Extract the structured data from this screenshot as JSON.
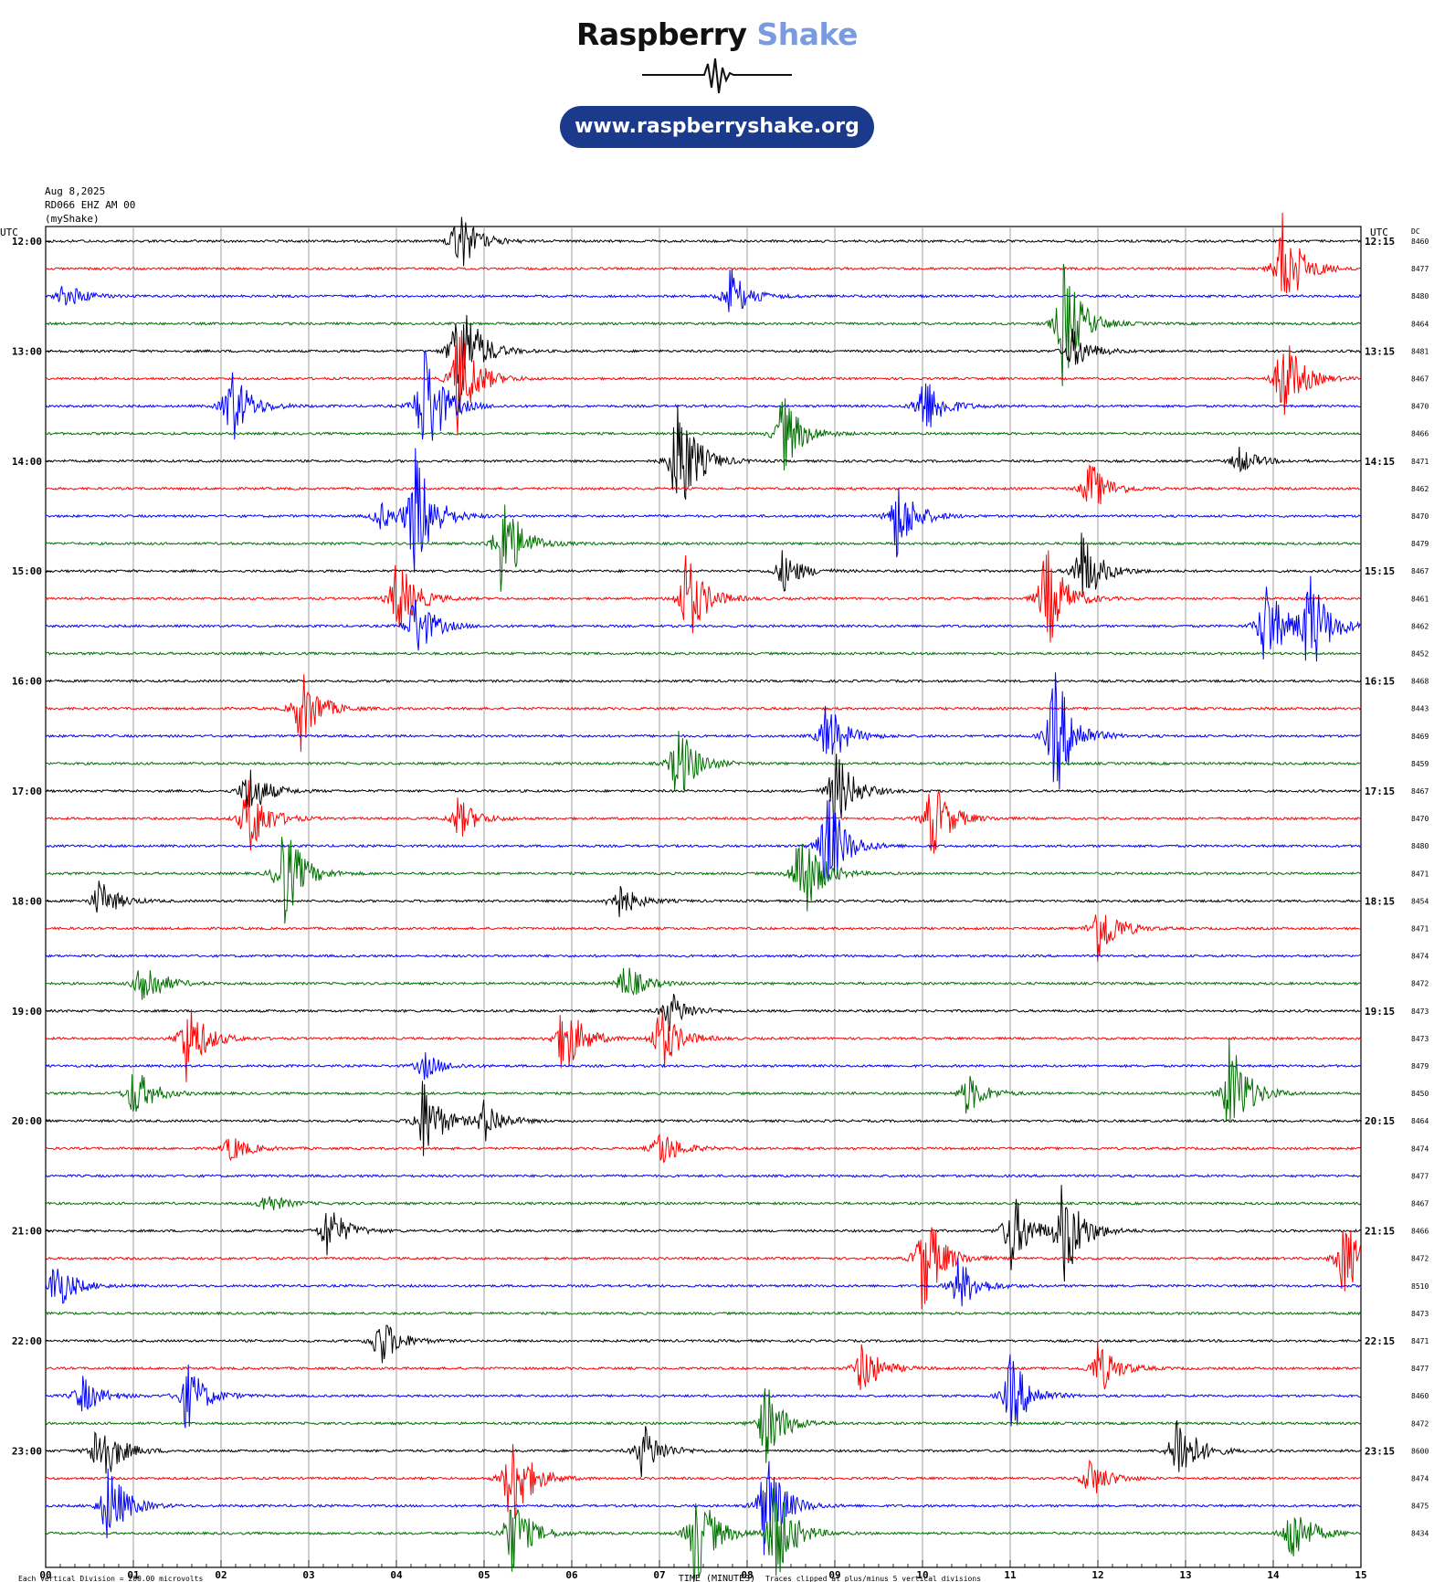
{
  "logo": {
    "word1": "Raspberry",
    "word2": "Shake",
    "url": "www.raspberryshake.org",
    "accent": "#7b9be0",
    "pill_color": "#1c3a8c"
  },
  "header": {
    "date": "Aug 8,2025",
    "station": "RD066 EHZ AM 00",
    "source": "(myShake)"
  },
  "axis": {
    "left_tz": "UTC",
    "right_tz": "UTC",
    "dc_label": "DC",
    "xlabel": "TIME (MINUTES)",
    "footer_left": "Each Vertical Division = 200.00 microvolts",
    "footer_right": "Traces clipped at plus/minus 5 vertical divisions"
  },
  "chart_data": {
    "type": "line",
    "title": "",
    "xlabel": "TIME (MINUTES)",
    "xlim": [
      0,
      15
    ],
    "x_ticks": [
      "00",
      "01",
      "02",
      "03",
      "04",
      "05",
      "06",
      "07",
      "08",
      "09",
      "10",
      "11",
      "12",
      "13",
      "14",
      "15"
    ],
    "row_minutes": 15,
    "rows": 48,
    "trace_colors": [
      "#000000",
      "#ff0000",
      "#0000ff",
      "#007000"
    ],
    "left_hour_labels": [
      "12:00",
      "13:00",
      "14:00",
      "15:00",
      "16:00",
      "17:00",
      "18:00",
      "19:00",
      "20:00",
      "21:00",
      "22:00",
      "23:00"
    ],
    "right_hour_labels": [
      "12:15",
      "13:15",
      "14:15",
      "15:15",
      "16:15",
      "17:15",
      "18:15",
      "19:15",
      "20:15",
      "21:15",
      "22:15",
      "23:15"
    ],
    "dc_values": [
      "8460",
      "8477",
      "8480",
      "8464",
      "8481",
      "8467",
      "8470",
      "8466",
      "8471",
      "8462",
      "8470",
      "8479",
      "8467",
      "8461",
      "8462",
      "8452",
      "8468",
      "8443",
      "8469",
      "8459",
      "8467",
      "8470",
      "8480",
      "8471",
      "8454",
      "8471",
      "8474",
      "8472",
      "8473",
      "8473",
      "8479",
      "8450",
      "8464",
      "8474",
      "8477",
      "8467",
      "8466",
      "8472",
      "8510",
      "8473",
      "8471",
      "8477",
      "8460",
      "8472",
      "8600",
      "8474",
      "8475",
      "8434"
    ],
    "events": [
      {
        "row": 0,
        "minute": 4.7,
        "amplitude": 2.4
      },
      {
        "row": 1,
        "minute": 14.1,
        "amplitude": 4
      },
      {
        "row": 2,
        "minute": 0.2,
        "amplitude": 1
      },
      {
        "row": 2,
        "minute": 7.8,
        "amplitude": 2
      },
      {
        "row": 3,
        "minute": 11.6,
        "amplitude": 4.5
      },
      {
        "row": 4,
        "minute": 4.7,
        "amplitude": 5
      },
      {
        "row": 4,
        "minute": 11.7,
        "amplitude": 1.5
      },
      {
        "row": 5,
        "minute": 4.7,
        "amplitude": 4
      },
      {
        "row": 5,
        "minute": 14.1,
        "amplitude": 3.5
      },
      {
        "row": 6,
        "minute": 2.1,
        "amplitude": 3
      },
      {
        "row": 6,
        "minute": 10.0,
        "amplitude": 2.5
      },
      {
        "row": 6,
        "minute": 4.3,
        "amplitude": 5
      },
      {
        "row": 7,
        "minute": 8.4,
        "amplitude": 3
      },
      {
        "row": 8,
        "minute": 7.2,
        "amplitude": 5
      },
      {
        "row": 8,
        "minute": 13.6,
        "amplitude": 1
      },
      {
        "row": 9,
        "minute": 11.9,
        "amplitude": 2
      },
      {
        "row": 10,
        "minute": 4.2,
        "amplitude": 5
      },
      {
        "row": 10,
        "minute": 9.7,
        "amplitude": 3
      },
      {
        "row": 10,
        "minute": 3.8,
        "amplitude": 1
      },
      {
        "row": 11,
        "minute": 5.2,
        "amplitude": 4
      },
      {
        "row": 12,
        "minute": 11.8,
        "amplitude": 3
      },
      {
        "row": 12,
        "minute": 8.4,
        "amplitude": 1.5
      },
      {
        "row": 13,
        "minute": 4.0,
        "amplitude": 3
      },
      {
        "row": 13,
        "minute": 7.3,
        "amplitude": 3.5
      },
      {
        "row": 13,
        "minute": 11.4,
        "amplitude": 4
      },
      {
        "row": 14,
        "minute": 4.2,
        "amplitude": 2.5
      },
      {
        "row": 14,
        "minute": 13.9,
        "amplitude": 3.5
      },
      {
        "row": 14,
        "minute": 14.4,
        "amplitude": 4
      },
      {
        "row": 17,
        "minute": 2.9,
        "amplitude": 3
      },
      {
        "row": 18,
        "minute": 11.5,
        "amplitude": 5
      },
      {
        "row": 18,
        "minute": 8.9,
        "amplitude": 2.5
      },
      {
        "row": 19,
        "minute": 7.2,
        "amplitude": 3
      },
      {
        "row": 20,
        "minute": 2.3,
        "amplitude": 2
      },
      {
        "row": 20,
        "minute": 9.0,
        "amplitude": 3
      },
      {
        "row": 21,
        "minute": 2.3,
        "amplitude": 3
      },
      {
        "row": 21,
        "minute": 10.1,
        "amplitude": 3
      },
      {
        "row": 21,
        "minute": 4.7,
        "amplitude": 1.5
      },
      {
        "row": 22,
        "minute": 8.9,
        "amplitude": 4
      },
      {
        "row": 23,
        "minute": 2.7,
        "amplitude": 4
      },
      {
        "row": 23,
        "minute": 8.6,
        "amplitude": 4
      },
      {
        "row": 24,
        "minute": 0.6,
        "amplitude": 1.5
      },
      {
        "row": 24,
        "minute": 6.5,
        "amplitude": 1.5
      },
      {
        "row": 25,
        "minute": 12.0,
        "amplitude": 2.5
      },
      {
        "row": 27,
        "minute": 1.1,
        "amplitude": 2
      },
      {
        "row": 27,
        "minute": 6.6,
        "amplitude": 1.5
      },
      {
        "row": 28,
        "minute": 7.1,
        "amplitude": 1.5
      },
      {
        "row": 29,
        "minute": 1.6,
        "amplitude": 3
      },
      {
        "row": 29,
        "minute": 5.9,
        "amplitude": 3
      },
      {
        "row": 29,
        "minute": 7.0,
        "amplitude": 2.5
      },
      {
        "row": 30,
        "minute": 4.3,
        "amplitude": 1
      },
      {
        "row": 31,
        "minute": 1.0,
        "amplitude": 2
      },
      {
        "row": 31,
        "minute": 10.5,
        "amplitude": 1.5
      },
      {
        "row": 31,
        "minute": 13.5,
        "amplitude": 4
      },
      {
        "row": 32,
        "minute": 4.3,
        "amplitude": 3
      },
      {
        "row": 32,
        "minute": 5.0,
        "amplitude": 1.5
      },
      {
        "row": 33,
        "minute": 2.1,
        "amplitude": 1
      },
      {
        "row": 33,
        "minute": 7.0,
        "amplitude": 1.5
      },
      {
        "row": 35,
        "minute": 2.5,
        "amplitude": 0.8
      },
      {
        "row": 36,
        "minute": 3.2,
        "amplitude": 2
      },
      {
        "row": 36,
        "minute": 11.0,
        "amplitude": 3
      },
      {
        "row": 36,
        "minute": 11.6,
        "amplitude": 4
      },
      {
        "row": 37,
        "minute": 10.0,
        "amplitude": 4
      },
      {
        "row": 37,
        "minute": 14.8,
        "amplitude": 3
      },
      {
        "row": 38,
        "minute": 0.1,
        "amplitude": 2
      },
      {
        "row": 38,
        "minute": 10.4,
        "amplitude": 2
      },
      {
        "row": 40,
        "minute": 3.8,
        "amplitude": 2
      },
      {
        "row": 41,
        "minute": 9.3,
        "amplitude": 2
      },
      {
        "row": 41,
        "minute": 12.0,
        "amplitude": 2
      },
      {
        "row": 42,
        "minute": 1.6,
        "amplitude": 2.5
      },
      {
        "row": 42,
        "minute": 11.0,
        "amplitude": 3
      },
      {
        "row": 42,
        "minute": 0.4,
        "amplitude": 1.5
      },
      {
        "row": 43,
        "minute": 8.2,
        "amplitude": 3
      },
      {
        "row": 44,
        "minute": 0.6,
        "amplitude": 3
      },
      {
        "row": 44,
        "minute": 6.8,
        "amplitude": 2
      },
      {
        "row": 44,
        "minute": 12.9,
        "amplitude": 3
      },
      {
        "row": 45,
        "minute": 5.3,
        "amplitude": 4
      },
      {
        "row": 45,
        "minute": 11.9,
        "amplitude": 1.5
      },
      {
        "row": 46,
        "minute": 0.7,
        "amplitude": 3
      },
      {
        "row": 46,
        "minute": 8.2,
        "amplitude": 4
      },
      {
        "row": 47,
        "minute": 7.4,
        "amplitude": 4
      },
      {
        "row": 47,
        "minute": 8.3,
        "amplitude": 4
      },
      {
        "row": 47,
        "minute": 14.2,
        "amplitude": 2.5
      },
      {
        "row": 47,
        "minute": 5.3,
        "amplitude": 3
      }
    ]
  }
}
